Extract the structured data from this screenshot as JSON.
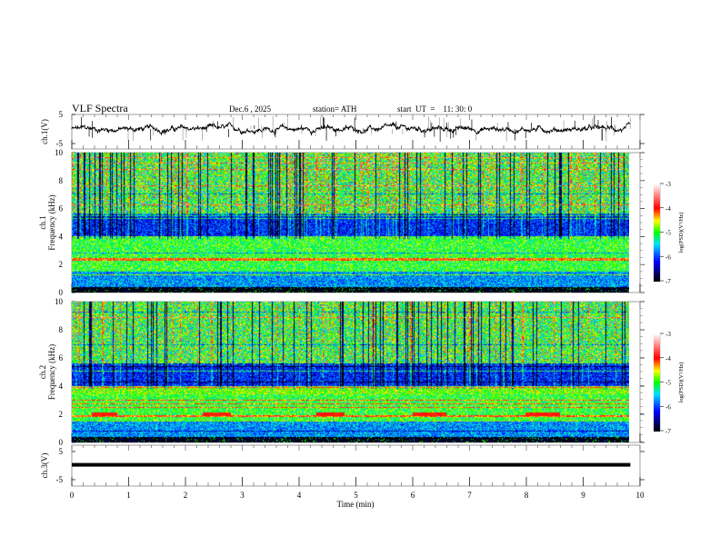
{
  "chart_data": {
    "type": "heatmap",
    "title": "VLF  Spectra",
    "date": "Dec.6  , 2025",
    "station": "station= ATH",
    "start_ut": "start  UT  =    11: 30: 0",
    "xlabel": "Time  (min)",
    "xlim": [
      0,
      10
    ],
    "xticks": [
      "0",
      "1",
      "2",
      "3",
      "4",
      "5",
      "6",
      "7",
      "8",
      "9",
      "10"
    ],
    "data_end_min": 9.83,
    "panels": [
      {
        "id": "ch1-waveform",
        "ylabel": "ch.1(V)",
        "ylim": [
          -5,
          5
        ],
        "yticks": [
          "5",
          "-5"
        ],
        "type": "line",
        "baseline": 0
      },
      {
        "id": "ch1-spectrogram",
        "ylabel_top": "ch.1",
        "ylabel": "Frequency  (kHz)",
        "ylim": [
          0,
          10
        ],
        "yticks": [
          "0",
          "2",
          "4",
          "6",
          "8",
          "10"
        ],
        "type": "heatmap"
      },
      {
        "id": "ch2-spectrogram",
        "ylabel_top": "ch.2",
        "ylabel": "Frequency  (kHz)",
        "ylim": [
          0,
          10
        ],
        "yticks": [
          "0",
          "2",
          "4",
          "6",
          "8",
          "10"
        ],
        "type": "heatmap",
        "red_band_khz": 2.0,
        "red_band_segments_min": [
          [
            0.35,
            0.8
          ],
          [
            2.3,
            2.8
          ],
          [
            4.3,
            4.8
          ],
          [
            6.0,
            6.6
          ],
          [
            8.0,
            8.6
          ]
        ]
      },
      {
        "id": "ch3-waveform",
        "ylabel": "ch.3(V)",
        "ylim": [
          -5,
          5
        ],
        "yticks": [
          "5",
          "-5"
        ],
        "type": "line",
        "baseline": 0.3
      }
    ],
    "colorbar": {
      "label": "log(PSD)(V²/Hz)",
      "range": [
        -7,
        -3
      ],
      "ticks": [
        "-3",
        "-4",
        "-5",
        "-6",
        "-7"
      ],
      "colors": [
        "#000000",
        "#0000ff",
        "#00e0ff",
        "#00ff00",
        "#ffff00",
        "#ff0000",
        "#ffffff"
      ]
    }
  }
}
